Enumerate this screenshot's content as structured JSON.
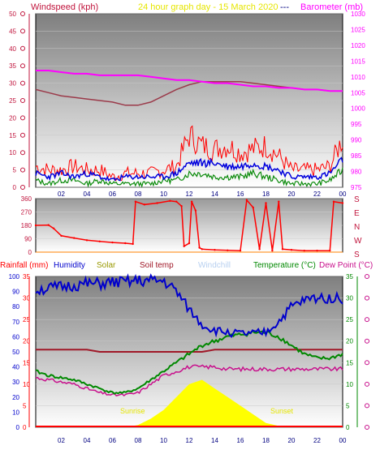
{
  "colors": {
    "wind": "#c0143c",
    "gust": "#ff0000",
    "avg_wind": "#0a8a0a",
    "wind_blue": "#0000dd",
    "barometer": "#ff00ff",
    "baro_dark": "#9b3a4a",
    "title": "#e6e600",
    "humidity": "#0000cc",
    "solar": "#999900",
    "soiltemp": "#a01828",
    "windchill": "#b8d0f0",
    "temperature": "#008800",
    "dewpoint": "#c8108c",
    "rain": "#ff0000",
    "daylight": "#ffff00",
    "sun_label": "#e6e600"
  },
  "top": {
    "title": "24 hour graph day - 15 March 2020",
    "left_label": "Windspeed (kph)",
    "right_label": "Barometer (mb)",
    "sep": "---"
  },
  "middle": {
    "compass": [
      "S",
      "E",
      "N",
      "W",
      "S"
    ]
  },
  "bottom": {
    "legend": [
      "Rainfall (mm)",
      "Humidity",
      "Solar",
      "Soil temp",
      "Windchill",
      "Temperature (°C)",
      "Dew Point (°C)"
    ],
    "sunrise_label": "Sunrise",
    "sunset_label": "Sunset"
  },
  "x_ticks": [
    "02",
    "04",
    "06",
    "08",
    "10",
    "12",
    "14",
    "16",
    "18",
    "20",
    "22",
    "00"
  ],
  "chart_data": [
    {
      "type": "line",
      "name": "wind-barometer",
      "x_hours": [
        0,
        1,
        2,
        3,
        4,
        5,
        6,
        7,
        8,
        9,
        10,
        11,
        12,
        13,
        14,
        15,
        16,
        17,
        18,
        19,
        20,
        21,
        22,
        23,
        24
      ],
      "ylim_left": [
        0,
        50
      ],
      "ylim_right": [
        975,
        1030
      ],
      "series": [
        {
          "key": "gust",
          "axis": "left",
          "values": [
            6,
            5,
            5,
            6,
            5,
            5,
            3,
            4,
            4,
            4,
            5,
            6,
            15,
            12,
            11,
            12,
            10,
            11,
            12,
            9,
            5,
            5,
            5,
            6,
            14
          ]
        },
        {
          "key": "wind_blue",
          "axis": "left",
          "values": [
            4,
            3,
            4,
            3,
            4,
            3,
            2,
            3,
            3,
            3,
            3,
            4,
            7,
            7,
            7,
            6,
            6,
            7,
            6,
            5,
            3,
            3,
            3,
            4,
            8
          ]
        },
        {
          "key": "avg_wind",
          "axis": "left",
          "values": [
            2,
            1,
            2,
            2,
            1,
            2,
            1,
            1,
            1,
            1,
            2,
            2,
            4,
            4,
            3,
            3,
            3,
            4,
            3,
            2,
            1,
            1,
            1,
            2,
            5
          ]
        },
        {
          "key": "barometer",
          "axis": "right",
          "values": [
            1012,
            1012,
            1011.5,
            1011,
            1011,
            1010.5,
            1010.5,
            1010.5,
            1010.5,
            1010,
            1009.5,
            1009,
            1009,
            1008.5,
            1008,
            1008,
            1007.5,
            1007,
            1007,
            1006.5,
            1006.5,
            1006,
            1006,
            1005.5,
            1005.5
          ]
        },
        {
          "key": "baro_dark",
          "axis": "right",
          "values": [
            1006,
            1005,
            1004,
            1003.5,
            1003,
            1002.5,
            1002,
            1001,
            1001,
            1002,
            1004,
            1006,
            1007.5,
            1008.5,
            1008.5,
            1008.5,
            1008.5,
            1008,
            1007.5,
            1007,
            1006.5,
            1006,
            1006,
            1005.5,
            1005.5
          ]
        }
      ]
    },
    {
      "type": "scatter",
      "name": "wind-direction",
      "ylim": [
        0,
        360
      ],
      "yticks": [
        0,
        90,
        180,
        270,
        360
      ],
      "points": [
        [
          0,
          180
        ],
        [
          1,
          182
        ],
        [
          1.4,
          160
        ],
        [
          2,
          110
        ],
        [
          3,
          95
        ],
        [
          4,
          80
        ],
        [
          5,
          72
        ],
        [
          6,
          65
        ],
        [
          7,
          60
        ],
        [
          7.6,
          55
        ],
        [
          7.8,
          340
        ],
        [
          8.5,
          320
        ],
        [
          9.5,
          330
        ],
        [
          10.5,
          345
        ],
        [
          11,
          340
        ],
        [
          11.4,
          310
        ],
        [
          11.6,
          40
        ],
        [
          12,
          60
        ],
        [
          12.2,
          340
        ],
        [
          12.5,
          280
        ],
        [
          12.8,
          30
        ],
        [
          13,
          20
        ],
        [
          14,
          15
        ],
        [
          15,
          12
        ],
        [
          16,
          10
        ],
        [
          16.5,
          350
        ],
        [
          17,
          300
        ],
        [
          17.5,
          20
        ],
        [
          18,
          330
        ],
        [
          18.5,
          10
        ],
        [
          19,
          340
        ],
        [
          19.3,
          20
        ],
        [
          20,
          15
        ],
        [
          21,
          10
        ],
        [
          22,
          10
        ],
        [
          23,
          10
        ],
        [
          23.3,
          340
        ],
        [
          24,
          330
        ]
      ]
    },
    {
      "type": "line",
      "name": "temperature-humidity",
      "x_hours": [
        0,
        1,
        2,
        3,
        4,
        5,
        6,
        7,
        8,
        9,
        10,
        11,
        12,
        13,
        14,
        15,
        16,
        17,
        18,
        19,
        20,
        21,
        22,
        23,
        24
      ],
      "ylim_left": [
        0,
        100
      ],
      "ylim_right": [
        0,
        35
      ],
      "series": [
        {
          "key": "humidity",
          "axis": "left",
          "values": [
            91,
            92,
            93,
            94,
            95,
            95,
            96,
            96,
            97,
            97,
            97,
            90,
            78,
            68,
            64,
            63,
            62,
            62,
            63,
            70,
            80,
            84,
            86,
            86,
            85
          ]
        },
        {
          "key": "soiltemp",
          "axis": "right",
          "values": [
            18,
            18,
            18,
            18,
            18,
            17.5,
            17.5,
            17.5,
            17.5,
            17.5,
            17.5,
            17.5,
            17.5,
            17.5,
            18,
            18,
            18,
            18,
            18,
            18,
            18,
            18,
            18,
            18,
            18
          ]
        },
        {
          "key": "temperature",
          "axis": "right",
          "values": [
            13,
            12,
            11.5,
            11,
            10,
            9,
            8,
            8,
            9,
            11,
            13,
            15,
            17,
            19,
            20,
            21,
            21.5,
            22,
            22,
            21,
            19,
            17,
            16,
            16,
            17
          ]
        },
        {
          "key": "dewpoint",
          "axis": "right",
          "values": [
            11.5,
            11,
            10.5,
            10,
            9,
            8,
            7.5,
            7.5,
            8,
            10,
            12,
            13,
            14,
            14,
            14,
            13.5,
            13.5,
            13.5,
            13.5,
            13.5,
            13.5,
            13.5,
            13.5,
            13.5,
            13.5
          ]
        },
        {
          "key": "solar",
          "axis": "right",
          "fill": "daylight",
          "values": [
            0,
            0,
            0,
            0,
            0,
            0,
            0,
            0,
            0.5,
            2,
            4,
            7,
            10,
            11,
            9,
            7,
            5,
            3,
            1,
            0.3,
            0,
            0,
            0,
            0,
            0
          ]
        }
      ]
    }
  ]
}
